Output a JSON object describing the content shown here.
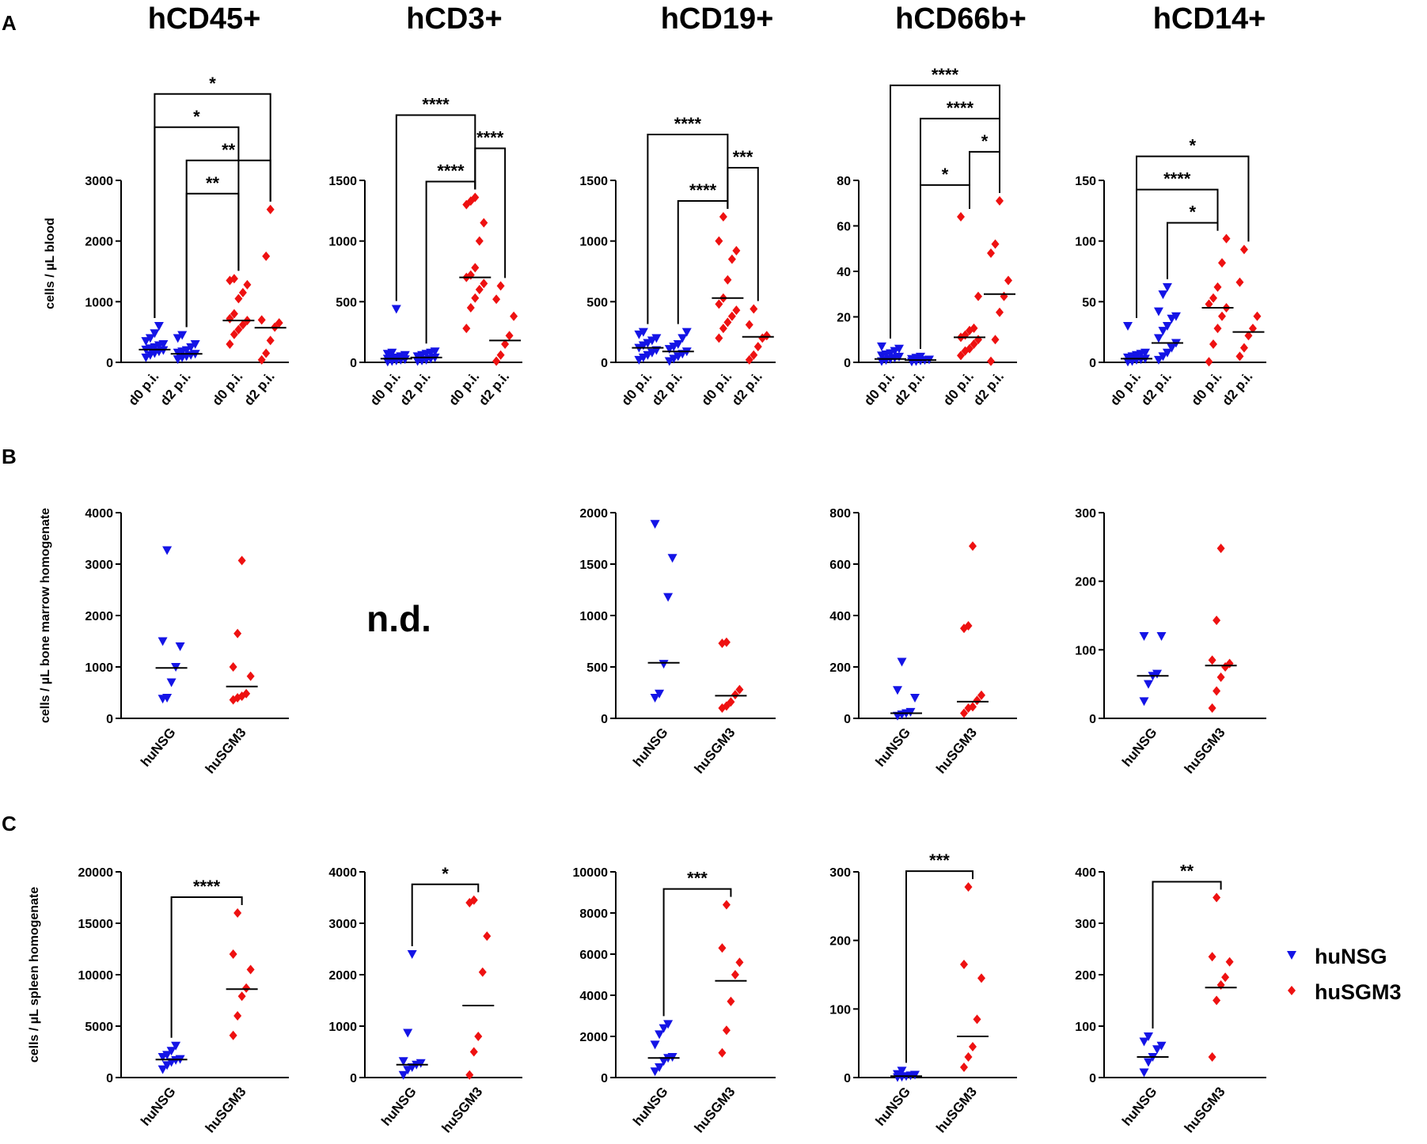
{
  "figure": {
    "panel_letters": [
      "A",
      "B",
      "C"
    ],
    "column_titles": [
      "hCD45+",
      "hCD3+",
      "hCD19+",
      "hCD66b+",
      "hCD14+"
    ],
    "not_determined_label": "n.d.",
    "colors": {
      "huNSG": "#1414e6",
      "huSGM3": "#ee1111",
      "axis": "#000000",
      "median": "#000000"
    }
  },
  "legend": {
    "items": [
      {
        "label": "huNSG",
        "marker": "triangle-down",
        "color": "#1414e6"
      },
      {
        "label": "huSGM3",
        "marker": "diamond",
        "color": "#ee1111"
      }
    ]
  },
  "chart_data": [
    {
      "type": "scatter",
      "row": "A",
      "col": 0,
      "title": "hCD45+",
      "ylabel": "cells / µL blood",
      "ylim": [
        0,
        3000
      ],
      "yticks": [
        0,
        1000,
        2000,
        3000
      ],
      "groups": [
        {
          "label": "d0 p.i.",
          "strain": "huNSG",
          "median": 210,
          "values": [
            80,
            120,
            150,
            180,
            200,
            210,
            230,
            250,
            280,
            300,
            350,
            400,
            480,
            600
          ]
        },
        {
          "label": "d2 p.i.",
          "strain": "huNSG",
          "median": 140,
          "values": [
            50,
            80,
            100,
            120,
            140,
            160,
            180,
            200,
            250,
            300,
            400,
            450
          ]
        },
        {
          "label": "d0 p.i.",
          "strain": "huSGM3",
          "median": 690,
          "values": [
            300,
            460,
            540,
            620,
            690,
            720,
            800,
            1050,
            1150,
            1280,
            1350,
            1380
          ]
        },
        {
          "label": "d2 p.i.",
          "strain": "huSGM3",
          "median": 570,
          "values": [
            40,
            150,
            360,
            580,
            650,
            700,
            1750,
            2520
          ]
        }
      ],
      "brackets": [
        {
          "from": 0,
          "to": 3,
          "label": "*"
        },
        {
          "from": 1,
          "to": 3,
          "label": "**"
        },
        {
          "from": 0,
          "to": 2,
          "label": "*"
        },
        {
          "from": 1,
          "to": 2,
          "label": "**"
        }
      ]
    },
    {
      "type": "scatter",
      "row": "A",
      "col": 1,
      "title": "hCD3+",
      "ylim": [
        0,
        1500
      ],
      "yticks": [
        0,
        500,
        1000,
        1500
      ],
      "groups": [
        {
          "label": "d0 p.i.",
          "strain": "huNSG",
          "median": 30,
          "values": [
            5,
            10,
            15,
            20,
            25,
            30,
            35,
            40,
            50,
            60,
            70,
            80,
            440
          ]
        },
        {
          "label": "d2 p.i.",
          "strain": "huNSG",
          "median": 40,
          "values": [
            10,
            15,
            20,
            30,
            40,
            50,
            60,
            70,
            80,
            90
          ]
        },
        {
          "label": "d0 p.i.",
          "strain": "huSGM3",
          "median": 700,
          "values": [
            280,
            450,
            530,
            600,
            650,
            700,
            720,
            780,
            1000,
            1150,
            1300,
            1330,
            1360
          ]
        },
        {
          "label": "d2 p.i.",
          "strain": "huSGM3",
          "median": 180,
          "values": [
            10,
            60,
            150,
            220,
            380,
            520,
            630
          ]
        }
      ],
      "brackets": [
        {
          "from": 1,
          "to": 2,
          "label": "****"
        },
        {
          "from": 0,
          "to": 2,
          "label": "****"
        },
        {
          "from": 2,
          "to": 3,
          "label": "****"
        }
      ]
    },
    {
      "type": "scatter",
      "row": "A",
      "col": 2,
      "title": "hCD19+",
      "ylim": [
        0,
        1500
      ],
      "yticks": [
        0,
        500,
        1000,
        1500
      ],
      "groups": [
        {
          "label": "d0 p.i.",
          "strain": "huNSG",
          "median": 120,
          "values": [
            20,
            40,
            60,
            80,
            100,
            120,
            140,
            160,
            180,
            200,
            230,
            250
          ]
        },
        {
          "label": "d2 p.i.",
          "strain": "huNSG",
          "median": 90,
          "values": [
            10,
            30,
            50,
            70,
            90,
            110,
            130,
            150,
            200,
            250
          ]
        },
        {
          "label": "d0 p.i.",
          "strain": "huSGM3",
          "median": 530,
          "values": [
            200,
            280,
            330,
            380,
            430,
            480,
            530,
            680,
            850,
            920,
            1000,
            1200
          ]
        },
        {
          "label": "d2 p.i.",
          "strain": "huSGM3",
          "median": 210,
          "values": [
            20,
            60,
            130,
            200,
            220,
            310,
            440
          ]
        }
      ],
      "brackets": [
        {
          "from": 0,
          "to": 2,
          "label": "****"
        },
        {
          "from": 1,
          "to": 2,
          "label": "****"
        },
        {
          "from": 2,
          "to": 3,
          "label": "***"
        }
      ]
    },
    {
      "type": "scatter",
      "row": "A",
      "col": 3,
      "title": "hCD66b+",
      "ylim": [
        0,
        80
      ],
      "yticks": [
        0,
        20,
        40,
        60,
        80
      ],
      "groups": [
        {
          "label": "d0 p.i.",
          "strain": "huNSG",
          "median": 1.5,
          "values": [
            0.5,
            1,
            1.5,
            2,
            2.5,
            3,
            3.5,
            4,
            5,
            6,
            7
          ]
        },
        {
          "label": "d2 p.i.",
          "strain": "huNSG",
          "median": 1,
          "values": [
            0.3,
            0.5,
            0.8,
            1,
            1.2,
            1.5,
            2,
            2.5
          ]
        },
        {
          "label": "d0 p.i.",
          "strain": "huSGM3",
          "median": 11,
          "values": [
            3,
            5,
            6,
            8,
            10,
            11,
            12,
            14,
            15,
            29,
            64
          ]
        },
        {
          "label": "d2 p.i.",
          "strain": "huSGM3",
          "median": 30,
          "values": [
            0.5,
            10,
            22,
            29,
            36,
            48,
            52,
            71
          ]
        }
      ],
      "brackets": [
        {
          "from": 0,
          "to": 3,
          "label": "****"
        },
        {
          "from": 1,
          "to": 3,
          "label": "****"
        },
        {
          "from": 1,
          "to": 2,
          "label": "*"
        },
        {
          "from": 2,
          "to": 3,
          "label": "*"
        }
      ]
    },
    {
      "type": "scatter",
      "row": "A",
      "col": 4,
      "title": "hCD14+",
      "ylim": [
        0,
        150
      ],
      "yticks": [
        0,
        50,
        100,
        150
      ],
      "groups": [
        {
          "label": "d0 p.i.",
          "strain": "huNSG",
          "median": 3,
          "values": [
            0.5,
            1,
            2,
            2.5,
            3,
            4,
            5,
            6,
            7,
            8,
            30
          ]
        },
        {
          "label": "d2 p.i.",
          "strain": "huNSG",
          "median": 16,
          "values": [
            2,
            5,
            8,
            12,
            16,
            20,
            26,
            30,
            36,
            38,
            42,
            56,
            62
          ]
        },
        {
          "label": "d0 p.i.",
          "strain": "huSGM3",
          "median": 45,
          "values": [
            0.5,
            15,
            28,
            38,
            45,
            48,
            53,
            62,
            82,
            102
          ]
        },
        {
          "label": "d2 p.i.",
          "strain": "huSGM3",
          "median": 25,
          "values": [
            5,
            12,
            22,
            28,
            38,
            66,
            93
          ]
        }
      ],
      "brackets": [
        {
          "from": 0,
          "to": 3,
          "label": "*"
        },
        {
          "from": 0,
          "to": 2,
          "label": "****"
        },
        {
          "from": 1,
          "to": 2,
          "label": "*"
        }
      ]
    },
    {
      "type": "scatter",
      "row": "B",
      "col": 0,
      "title": "hCD45+",
      "ylabel": "cells / µL bone marrow homogenate",
      "ylim": [
        0,
        4000
      ],
      "yticks": [
        0,
        1000,
        2000,
        3000,
        4000
      ],
      "groups": [
        {
          "label": "huNSG",
          "strain": "huNSG",
          "median": 980,
          "values": [
            380,
            400,
            700,
            1000,
            1400,
            1500,
            3270
          ]
        },
        {
          "label": "huSGM3",
          "strain": "huSGM3",
          "median": 620,
          "values": [
            360,
            400,
            430,
            480,
            820,
            1000,
            1650,
            3070
          ]
        }
      ],
      "brackets": []
    },
    {
      "type": "scatter",
      "row": "B",
      "col": 1,
      "title": "hCD3+",
      "not_determined": true,
      "groups": [],
      "brackets": []
    },
    {
      "type": "scatter",
      "row": "B",
      "col": 2,
      "title": "hCD19+",
      "ylim": [
        0,
        2000
      ],
      "yticks": [
        0,
        500,
        1000,
        1500,
        2000
      ],
      "groups": [
        {
          "label": "huNSG",
          "strain": "huNSG",
          "median": 540,
          "values": [
            200,
            240,
            530,
            1180,
            1560,
            1890
          ]
        },
        {
          "label": "huSGM3",
          "strain": "huSGM3",
          "median": 220,
          "values": [
            100,
            120,
            160,
            230,
            280,
            730,
            740
          ]
        }
      ],
      "brackets": []
    },
    {
      "type": "scatter",
      "row": "B",
      "col": 3,
      "title": "hCD66b+",
      "ylim": [
        0,
        800
      ],
      "yticks": [
        0,
        200,
        400,
        600,
        800
      ],
      "groups": [
        {
          "label": "huNSG",
          "strain": "huNSG",
          "median": 20,
          "values": [
            10,
            15,
            20,
            25,
            80,
            110,
            220
          ]
        },
        {
          "label": "huSGM3",
          "strain": "huSGM3",
          "median": 65,
          "values": [
            20,
            40,
            45,
            70,
            90,
            350,
            360,
            670
          ]
        }
      ],
      "brackets": []
    },
    {
      "type": "scatter",
      "row": "B",
      "col": 4,
      "title": "hCD14+",
      "ylim": [
        0,
        300
      ],
      "yticks": [
        0,
        100,
        200,
        300
      ],
      "groups": [
        {
          "label": "huNSG",
          "strain": "huNSG",
          "median": 62,
          "values": [
            25,
            50,
            62,
            65,
            120,
            120
          ]
        },
        {
          "label": "huSGM3",
          "strain": "huSGM3",
          "median": 77,
          "values": [
            15,
            40,
            60,
            75,
            80,
            85,
            143,
            248
          ]
        }
      ],
      "brackets": []
    },
    {
      "type": "scatter",
      "row": "C",
      "col": 0,
      "title": "hCD45+",
      "ylabel": "cells / µL spleen homogenate",
      "ylim": [
        0,
        20000
      ],
      "yticks": [
        0,
        5000,
        10000,
        15000,
        20000
      ],
      "groups": [
        {
          "label": "huNSG",
          "strain": "huNSG",
          "median": 1750,
          "values": [
            800,
            1200,
            1500,
            1700,
            1800,
            2000,
            2200,
            2600,
            3100
          ]
        },
        {
          "label": "huSGM3",
          "strain": "huSGM3",
          "median": 8600,
          "values": [
            4100,
            6000,
            7900,
            8700,
            10500,
            12000,
            16000
          ]
        }
      ],
      "brackets": [
        {
          "from": 0,
          "to": 1,
          "label": "****"
        }
      ]
    },
    {
      "type": "scatter",
      "row": "C",
      "col": 1,
      "title": "hCD3+",
      "ylim": [
        0,
        4000
      ],
      "yticks": [
        0,
        1000,
        2000,
        3000,
        4000
      ],
      "groups": [
        {
          "label": "huNSG",
          "strain": "huNSG",
          "median": 250,
          "values": [
            50,
            150,
            200,
            250,
            280,
            320,
            870,
            2400
          ]
        },
        {
          "label": "huSGM3",
          "strain": "huSGM3",
          "median": 1400,
          "values": [
            50,
            500,
            800,
            2050,
            2750,
            3400,
            3450
          ]
        }
      ],
      "brackets": [
        {
          "from": 0,
          "to": 1,
          "label": "*"
        }
      ]
    },
    {
      "type": "scatter",
      "row": "C",
      "col": 2,
      "title": "hCD19+",
      "ylim": [
        0,
        10000
      ],
      "yticks": [
        0,
        2000,
        4000,
        6000,
        8000,
        10000
      ],
      "groups": [
        {
          "label": "huNSG",
          "strain": "huNSG",
          "median": 950,
          "values": [
            300,
            500,
            800,
            950,
            1000,
            1600,
            2100,
            2400,
            2600
          ]
        },
        {
          "label": "huSGM3",
          "strain": "huSGM3",
          "median": 4700,
          "values": [
            1200,
            2300,
            3700,
            5000,
            5600,
            6300,
            8400
          ]
        }
      ],
      "brackets": [
        {
          "from": 0,
          "to": 1,
          "label": "***"
        }
      ]
    },
    {
      "type": "scatter",
      "row": "C",
      "col": 3,
      "title": "hCD66b+",
      "ylim": [
        0,
        300
      ],
      "yticks": [
        0,
        100,
        200,
        300
      ],
      "groups": [
        {
          "label": "huNSG",
          "strain": "huNSG",
          "median": 2,
          "values": [
            0.5,
            1,
            2,
            3,
            4,
            5,
            10
          ]
        },
        {
          "label": "huSGM3",
          "strain": "huSGM3",
          "median": 60,
          "values": [
            15,
            30,
            45,
            85,
            145,
            165,
            278
          ]
        }
      ],
      "brackets": [
        {
          "from": 0,
          "to": 1,
          "label": "***"
        }
      ]
    },
    {
      "type": "scatter",
      "row": "C",
      "col": 4,
      "title": "hCD14+",
      "ylim": [
        0,
        400
      ],
      "yticks": [
        0,
        100,
        200,
        300,
        400
      ],
      "groups": [
        {
          "label": "huNSG",
          "strain": "huNSG",
          "median": 40,
          "values": [
            10,
            30,
            40,
            55,
            62,
            70,
            80
          ]
        },
        {
          "label": "huSGM3",
          "strain": "huSGM3",
          "median": 175,
          "values": [
            40,
            150,
            180,
            195,
            225,
            235,
            350
          ]
        }
      ],
      "brackets": [
        {
          "from": 0,
          "to": 1,
          "label": "**"
        }
      ]
    }
  ]
}
